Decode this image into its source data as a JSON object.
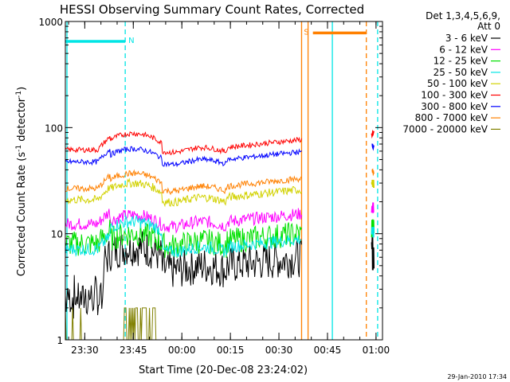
{
  "chart_data": {
    "type": "line",
    "title": "HESSI Observing Summary Count Rates, Corrected",
    "xlabel": "Start Time (20-Dec-08 23:24:02)",
    "ylabel_main": "Corrected Count Rate (s",
    "ylabel_sup1": "-1",
    "ylabel_mid": " detector",
    "ylabel_sup2": "-1",
    "ylabel_end": ")",
    "y_scale": "log",
    "ylim": [
      1,
      1000
    ],
    "y_ticks": [
      {
        "value": 1,
        "label": "1"
      },
      {
        "value": 10,
        "label": "10"
      },
      {
        "value": 100,
        "label": "100"
      },
      {
        "value": 1000,
        "label": "1000"
      }
    ],
    "x_unit": "minutes after 23:24:02",
    "xlim": [
      0,
      98
    ],
    "x_ticks": [
      {
        "value": 6,
        "label": "23:30"
      },
      {
        "value": 21,
        "label": "23:45"
      },
      {
        "value": 36,
        "label": "00:00"
      },
      {
        "value": 51,
        "label": "00:15"
      },
      {
        "value": 66,
        "label": "00:30"
      },
      {
        "value": 81,
        "label": "00:45"
      },
      {
        "value": 96,
        "label": "01:00"
      }
    ],
    "legend_title_1": "Det 1,3,4,5,6,9,",
    "legend_title_2": "Att 0",
    "legend_position": "right",
    "timestamp": "29-Jan-2010 17:34",
    "series": [
      {
        "name": "3 - 6 keV",
        "color": "#000000",
        "base": 5,
        "rise": 7.5,
        "noise": 0.18
      },
      {
        "name": "6 - 12 keV",
        "color": "#ff00ff",
        "base": 13,
        "rise": 15,
        "noise": 0.06
      },
      {
        "name": "12 - 25 keV",
        "color": "#00e000",
        "base": 8.5,
        "rise": 10,
        "noise": 0.12
      },
      {
        "name": "25 - 50 keV",
        "color": "#00e5e5",
        "base": 7.5,
        "rise": 13,
        "noise": 0.06
      },
      {
        "name": "50 - 100 keV",
        "color": "#d2d200",
        "base": 22,
        "rise": 30,
        "noise": 0.04
      },
      {
        "name": "100 - 300 keV",
        "color": "#ff0000",
        "base": 65,
        "rise": 88,
        "noise": 0.025
      },
      {
        "name": "300 - 800 keV",
        "color": "#0000ff",
        "base": 50,
        "rise": 63,
        "noise": 0.025
      },
      {
        "name": "800 - 7000 keV",
        "color": "#ff8000",
        "base": 28,
        "rise": 37,
        "noise": 0.03
      },
      {
        "name": "7000 - 20000 keV",
        "color": "#808000",
        "base": 1,
        "rise": 1,
        "noise": 0
      }
    ],
    "markers": [
      {
        "label": "N",
        "style": "cyan-band",
        "x_start": 0,
        "x_end": 18.5,
        "y": 650
      },
      {
        "label": "S",
        "style": "orange-band",
        "x_start": 76.5,
        "x_end": 93,
        "y": 780
      }
    ],
    "vertical_lines": [
      {
        "x": 0.5,
        "color": "#00e5e5",
        "dash": false
      },
      {
        "x": 18.5,
        "color": "#00e5e5",
        "dash": true
      },
      {
        "x": 73,
        "color": "#ff8000",
        "dash": false
      },
      {
        "x": 75,
        "color": "#ff8000",
        "dash": false
      },
      {
        "x": 82.5,
        "color": "#00e5e5",
        "dash": false
      },
      {
        "x": 93,
        "color": "#ff8000",
        "dash": true
      },
      {
        "x": 96.5,
        "color": "#00e5e5",
        "dash": true
      }
    ],
    "gap_ranges": [
      [
        73.5,
        93
      ]
    ]
  }
}
